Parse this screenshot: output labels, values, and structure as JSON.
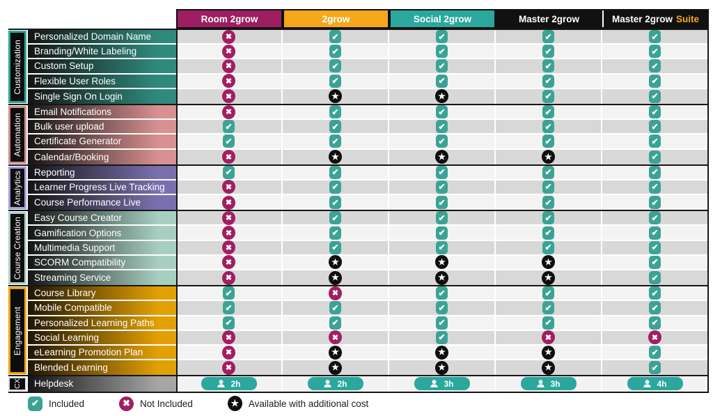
{
  "columns": [
    {
      "label": "Room 2grow",
      "color": "#9e1e62",
      "text_color": "#ffffff"
    },
    {
      "label": "2grow",
      "color": "#f5a81c",
      "text_color": "#ffffff"
    },
    {
      "label": "Social 2grow",
      "color": "#2ba79d",
      "text_color": "#ffffff"
    },
    {
      "label": "Master 2grow",
      "color": "#111111",
      "text_color": "#ffffff"
    },
    {
      "label": "Master 2grow",
      "suffix": "Suite",
      "color": "#111111",
      "text_color": "#ffffff",
      "suffix_color": "#f5a81c"
    }
  ],
  "groups": [
    {
      "name": "Customization",
      "accent": "#2ba79d",
      "gradient_from": "#141414",
      "gradient_to": "#2f8a7d",
      "rows": [
        {
          "label": "Personalized Domain Name",
          "cells": [
            "x",
            "check",
            "check",
            "check",
            "check"
          ]
        },
        {
          "label": "Branding/White Labeling",
          "cells": [
            "x",
            "check",
            "check",
            "check",
            "check"
          ]
        },
        {
          "label": "Custom Setup",
          "cells": [
            "x",
            "check",
            "check",
            "check",
            "check"
          ]
        },
        {
          "label": "Flexible User Roles",
          "cells": [
            "x",
            "check",
            "check",
            "check",
            "check"
          ]
        },
        {
          "label": "Single Sign On Login",
          "cells": [
            "x",
            "star",
            "star",
            "check",
            "check"
          ]
        }
      ]
    },
    {
      "name": "Automation",
      "accent": "#cf8e8e",
      "gradient_from": "#141414",
      "gradient_to": "#d89090",
      "rows": [
        {
          "label": "Email Notifications",
          "cells": [
            "x",
            "check",
            "check",
            "check",
            "check"
          ]
        },
        {
          "label": "Bulk user upload",
          "cells": [
            "check",
            "check",
            "check",
            "check",
            "check"
          ]
        },
        {
          "label": "Certificate Generator",
          "cells": [
            "check",
            "check",
            "check",
            "check",
            "check"
          ]
        },
        {
          "label": "Calendar/Booking",
          "cells": [
            "x",
            "star",
            "star",
            "star",
            "check"
          ]
        }
      ]
    },
    {
      "name": "Analytics",
      "accent": "#a89fd8",
      "gradient_from": "#141414",
      "gradient_to": "#7b70af",
      "rows": [
        {
          "label": "Reporting",
          "cells": [
            "check",
            "check",
            "check",
            "check",
            "check"
          ]
        },
        {
          "label": "Learner Progress Live Tracking",
          "cells": [
            "x",
            "check",
            "check",
            "check",
            "check"
          ]
        },
        {
          "label": "Course Performance Live",
          "cells": [
            "x",
            "check",
            "check",
            "check",
            "check"
          ]
        }
      ]
    },
    {
      "name": "Course Creation",
      "accent": "#aed2c6",
      "gradient_from": "#141414",
      "gradient_to": "#a7cfc1",
      "rows": [
        {
          "label": "Easy Course Creator",
          "cells": [
            "x",
            "check",
            "check",
            "check",
            "check"
          ]
        },
        {
          "label": "Gamification Options",
          "cells": [
            "x",
            "check",
            "check",
            "check",
            "check"
          ]
        },
        {
          "label": "Multimedia Support",
          "cells": [
            "x",
            "check",
            "check",
            "check",
            "check"
          ]
        },
        {
          "label": "SCORM Compatibility",
          "cells": [
            "x",
            "star",
            "star",
            "star",
            "check"
          ]
        },
        {
          "label": "Streaming Service",
          "cells": [
            "x",
            "star",
            "star",
            "star",
            "check"
          ]
        }
      ]
    },
    {
      "name": "Engagement",
      "accent": "#f0a500",
      "gradient_from": "#201503",
      "gradient_to": "#e3a004",
      "rows": [
        {
          "label": "Course Library",
          "cells": [
            "check",
            "x",
            "check",
            "check",
            "check"
          ]
        },
        {
          "label": "Mobile Compatible",
          "cells": [
            "check",
            "check",
            "check",
            "check",
            "check"
          ]
        },
        {
          "label": "Personalized Learning Paths",
          "cells": [
            "check",
            "check",
            "check",
            "check",
            "check"
          ]
        },
        {
          "label": "Social Learning",
          "cells": [
            "x",
            "x",
            "check",
            "x",
            "x"
          ]
        },
        {
          "label": "eLearning Promotion Plan",
          "cells": [
            "x",
            "star",
            "star",
            "star",
            "check"
          ]
        },
        {
          "label": "Blended Learning",
          "cells": [
            "x",
            "star",
            "star",
            "star",
            "check"
          ]
        }
      ]
    },
    {
      "name": "CX",
      "accent": "#dcdcec",
      "gradient_from": "#141414",
      "gradient_to": "#a6a6a6",
      "rows": [
        {
          "label": "Helpdesk",
          "cells": [
            "badge",
            "badge",
            "badge",
            "badge",
            "badge"
          ],
          "hours": [
            "2h",
            "2h",
            "3h",
            "3h",
            "4h"
          ]
        }
      ]
    }
  ],
  "legend": [
    {
      "icon": "check",
      "label": "Included"
    },
    {
      "icon": "x",
      "label": "Not Included"
    },
    {
      "icon": "star",
      "label": "Available with additional cost"
    }
  ],
  "status_colors": {
    "included": "#3aa394",
    "not_included": "#a21d63",
    "additional_cost": "#0e0e0e",
    "helpdesk_badge": "#2ba79d"
  },
  "chart_data": {
    "type": "table",
    "title": "2grow plan feature comparison",
    "columns": [
      "Room 2grow",
      "2grow",
      "Social 2grow",
      "Master 2grow",
      "Master 2grow Suite"
    ],
    "value_legend": {
      "check": "Included",
      "x": "Not Included",
      "star": "Available with additional cost"
    },
    "rows": [
      {
        "category": "Customization",
        "feature": "Personalized Domain Name",
        "values": [
          "x",
          "check",
          "check",
          "check",
          "check"
        ]
      },
      {
        "category": "Customization",
        "feature": "Branding/White Labeling",
        "values": [
          "x",
          "check",
          "check",
          "check",
          "check"
        ]
      },
      {
        "category": "Customization",
        "feature": "Custom Setup",
        "values": [
          "x",
          "check",
          "check",
          "check",
          "check"
        ]
      },
      {
        "category": "Customization",
        "feature": "Flexible User Roles",
        "values": [
          "x",
          "check",
          "check",
          "check",
          "check"
        ]
      },
      {
        "category": "Customization",
        "feature": "Single Sign On Login",
        "values": [
          "x",
          "star",
          "star",
          "check",
          "check"
        ]
      },
      {
        "category": "Automation",
        "feature": "Email Notifications",
        "values": [
          "x",
          "check",
          "check",
          "check",
          "check"
        ]
      },
      {
        "category": "Automation",
        "feature": "Bulk user upload",
        "values": [
          "check",
          "check",
          "check",
          "check",
          "check"
        ]
      },
      {
        "category": "Automation",
        "feature": "Certificate Generator",
        "values": [
          "check",
          "check",
          "check",
          "check",
          "check"
        ]
      },
      {
        "category": "Automation",
        "feature": "Calendar/Booking",
        "values": [
          "x",
          "star",
          "star",
          "star",
          "check"
        ]
      },
      {
        "category": "Analytics",
        "feature": "Reporting",
        "values": [
          "check",
          "check",
          "check",
          "check",
          "check"
        ]
      },
      {
        "category": "Analytics",
        "feature": "Learner Progress Live Tracking",
        "values": [
          "x",
          "check",
          "check",
          "check",
          "check"
        ]
      },
      {
        "category": "Analytics",
        "feature": "Course Performance Live",
        "values": [
          "x",
          "check",
          "check",
          "check",
          "check"
        ]
      },
      {
        "category": "Course Creation",
        "feature": "Easy Course Creator",
        "values": [
          "x",
          "check",
          "check",
          "check",
          "check"
        ]
      },
      {
        "category": "Course Creation",
        "feature": "Gamification Options",
        "values": [
          "x",
          "check",
          "check",
          "check",
          "check"
        ]
      },
      {
        "category": "Course Creation",
        "feature": "Multimedia Support",
        "values": [
          "x",
          "check",
          "check",
          "check",
          "check"
        ]
      },
      {
        "category": "Course Creation",
        "feature": "SCORM Compatibility",
        "values": [
          "x",
          "star",
          "star",
          "star",
          "check"
        ]
      },
      {
        "category": "Course Creation",
        "feature": "Streaming Service",
        "values": [
          "x",
          "star",
          "star",
          "star",
          "check"
        ]
      },
      {
        "category": "Engagement",
        "feature": "Course Library",
        "values": [
          "check",
          "x",
          "check",
          "check",
          "check"
        ]
      },
      {
        "category": "Engagement",
        "feature": "Mobile Compatible",
        "values": [
          "check",
          "check",
          "check",
          "check",
          "check"
        ]
      },
      {
        "category": "Engagement",
        "feature": "Personalized Learning Paths",
        "values": [
          "check",
          "check",
          "check",
          "check",
          "check"
        ]
      },
      {
        "category": "Engagement",
        "feature": "Social Learning",
        "values": [
          "x",
          "x",
          "check",
          "x",
          "x"
        ]
      },
      {
        "category": "Engagement",
        "feature": "eLearning Promotion Plan",
        "values": [
          "x",
          "star",
          "star",
          "star",
          "check"
        ]
      },
      {
        "category": "Engagement",
        "feature": "Blended Learning",
        "values": [
          "x",
          "star",
          "star",
          "star",
          "check"
        ]
      },
      {
        "category": "CX",
        "feature": "Helpdesk",
        "values": [
          "2h",
          "2h",
          "3h",
          "3h",
          "4h"
        ]
      }
    ]
  }
}
